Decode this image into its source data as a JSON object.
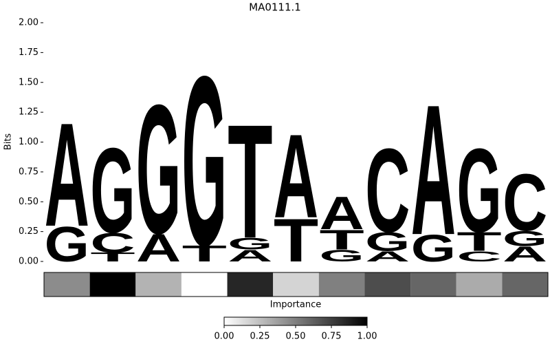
{
  "chart_data": {
    "type": "logo",
    "title": "MA0111.1",
    "y_label": "Bits",
    "ylim": [
      0,
      2
    ],
    "yticks": [
      {
        "value": 0,
        "label": "0.00"
      },
      {
        "value": 0.25,
        "label": "0.25"
      },
      {
        "value": 0.5,
        "label": "0.50"
      },
      {
        "value": 0.75,
        "label": "0.75"
      },
      {
        "value": 1,
        "label": "1.00"
      },
      {
        "value": 1.25,
        "label": "1.25"
      },
      {
        "value": 1.5,
        "label": "1.50"
      },
      {
        "value": 1.75,
        "label": "1.75"
      },
      {
        "value": 2,
        "label": "2.00"
      }
    ],
    "colors": {
      "A": "#4ba14a",
      "C": "#4b4bfc",
      "G": "#ffbf4b",
      "T": "#fe4b4b"
    },
    "positions": [
      {
        "letters": [
          "G",
          "A"
        ],
        "values": [
          0.3,
          0.89
        ]
      },
      {
        "letters": [
          "T",
          "C",
          "G"
        ],
        "values": [
          0.075,
          0.17,
          0.73
        ]
      },
      {
        "letters": [
          "A",
          "G"
        ],
        "values": [
          0.24,
          1.11
        ]
      },
      {
        "letters": [
          "T",
          "G"
        ],
        "values": [
          0.14,
          1.46
        ]
      },
      {
        "letters": [
          "A",
          "G",
          "T"
        ],
        "values": [
          0.1,
          0.1,
          0.98
        ]
      },
      {
        "letters": [
          "T",
          "A"
        ],
        "values": [
          0.37,
          0.72
        ]
      },
      {
        "letters": [
          "G",
          "T",
          "A"
        ],
        "values": [
          0.1,
          0.17,
          0.28
        ]
      },
      {
        "letters": [
          "A",
          "G",
          "C"
        ],
        "values": [
          0.09,
          0.16,
          0.72
        ]
      },
      {
        "letters": [
          "G",
          "A"
        ],
        "values": [
          0.23,
          1.12
        ]
      },
      {
        "letters": [
          "C",
          "T",
          "G"
        ],
        "values": [
          0.09,
          0.16,
          0.72
        ]
      },
      {
        "letters": [
          "A",
          "G",
          "C"
        ],
        "values": [
          0.13,
          0.13,
          0.49
        ]
      }
    ],
    "importance": {
      "label": "Importance",
      "values": [
        0.45,
        1,
        0.3,
        0,
        0.85,
        0.17,
        0.5,
        0.7,
        0.6,
        0.33,
        0.6
      ],
      "clim": [
        0,
        1
      ],
      "ticks": [
        {
          "value": 0,
          "label": "0.00"
        },
        {
          "value": 0.25,
          "label": "0.25"
        },
        {
          "value": 0.5,
          "label": "0.50"
        },
        {
          "value": 0.75,
          "label": "0.75"
        },
        {
          "value": 1,
          "label": "1.00"
        }
      ]
    }
  }
}
